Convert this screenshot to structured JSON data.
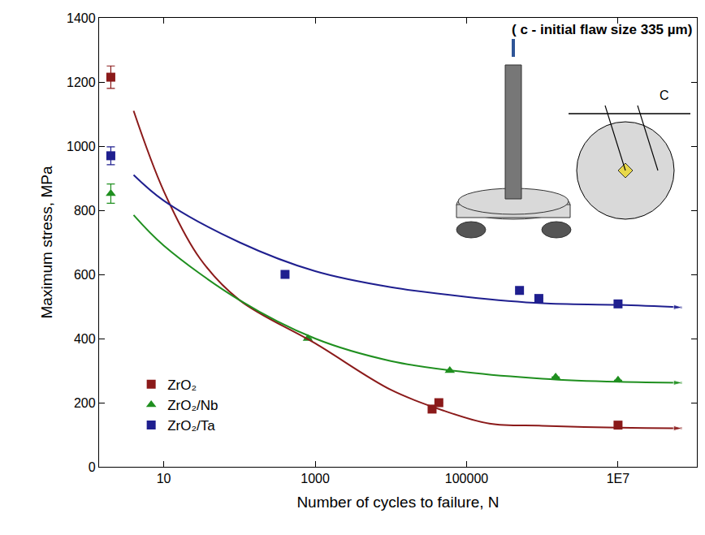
{
  "chart_data": {
    "type": "scatter",
    "x_label": "Number of cycles to failure, N",
    "y_label": "Maximum stress, MPa",
    "annotations": [
      "( c - initial flaw size 335 µm)",
      "C"
    ],
    "log": "x",
    "grid": false,
    "legend": "lower left",
    "xlim": [
      1.4,
      110000000
    ],
    "xticks": [
      10,
      1000,
      100000,
      {
        "value": 10000000,
        "label": "1E7"
      }
    ],
    "ylim": [
      0,
      1400
    ],
    "yticks": [
      0,
      200,
      400,
      600,
      800,
      1000,
      1200,
      1400
    ],
    "series": [
      {
        "name": "ZrO₂",
        "color": "#8b1a1a",
        "marker": "square",
        "x": [
          2,
          35000,
          43000,
          10000000
        ],
        "values": [
          1215,
          180,
          200,
          130
        ],
        "error": [
          35,
          null,
          null,
          null
        ]
      },
      {
        "name": "ZrO₂/Nb",
        "color": "#1f8f1f",
        "marker": "triangle",
        "x": [
          2,
          800,
          60000,
          1500000,
          10000000
        ],
        "values": [
          852,
          400,
          300,
          280,
          270
        ],
        "error": [
          30,
          null,
          null,
          null,
          null
        ]
      },
      {
        "name": "ZrO₂/Ta",
        "color": "#1f1f8f",
        "marker": "square",
        "x": [
          2,
          400,
          500000,
          900000,
          10000000
        ],
        "values": [
          970,
          600,
          550,
          525,
          508
        ],
        "error": [
          28,
          null,
          null,
          null,
          null
        ]
      },
      {
        "type": "line",
        "color": "#8b1a1a",
        "marker": "arrow",
        "x": [
          4,
          10,
          30,
          100,
          1000,
          10000,
          50000,
          200000,
          1000000,
          10000000,
          70000000
        ],
        "values": [
          1110,
          860,
          650,
          520,
          385,
          240,
          175,
          135,
          128,
          122,
          120
        ]
      },
      {
        "type": "line",
        "color": "#1f8f1f",
        "marker": "arrow",
        "x": [
          4,
          10,
          100,
          1000,
          10000,
          100000,
          1000000,
          10000000,
          70000000
        ],
        "values": [
          785,
          690,
          520,
          400,
          330,
          295,
          275,
          265,
          262
        ]
      },
      {
        "type": "line",
        "color": "#1f1f8f",
        "marker": "arrow",
        "x": [
          4,
          10,
          100,
          1000,
          10000,
          100000,
          1000000,
          10000000,
          70000000
        ],
        "values": [
          910,
          830,
          700,
          610,
          560,
          530,
          510,
          505,
          497
        ]
      }
    ]
  }
}
